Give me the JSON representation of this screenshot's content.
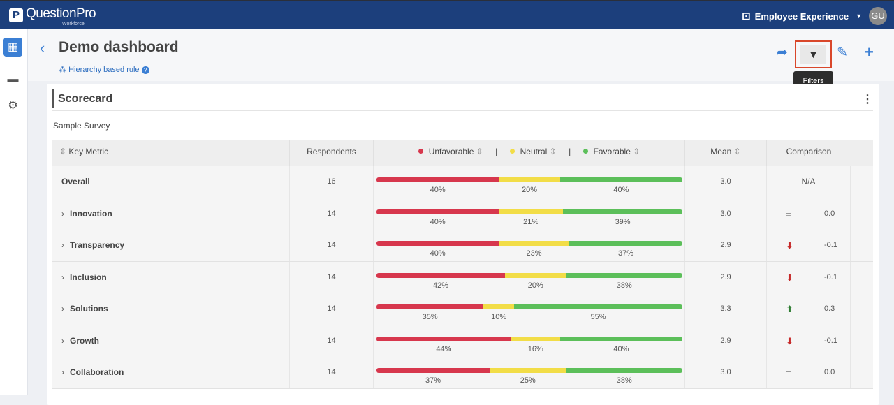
{
  "topbar": {
    "brand": "QuestionPro",
    "brand_sub": "Workforce",
    "product": "Employee Experience",
    "avatar": "GU"
  },
  "page": {
    "title": "Demo dashboard",
    "rule": "Hierarchy based rule",
    "tooltip": "Filters"
  },
  "card": {
    "title": "Scorecard",
    "survey": "Sample Survey"
  },
  "table": {
    "headers": {
      "metric": "Key Metric",
      "respondents": "Respondents",
      "unfavorable": "Unfavorable",
      "neutral": "Neutral",
      "favorable": "Favorable",
      "mean": "Mean",
      "comparison": "Comparison"
    },
    "colors": {
      "unfavorable": "#d7374d",
      "neutral": "#f2dd47",
      "favorable": "#5cbf5a"
    },
    "rows": [
      {
        "name": "Overall",
        "respondents": "16",
        "u": 40,
        "n": 20,
        "f": 40,
        "mean": "3.0",
        "trend": "none",
        "comparison": "N/A",
        "expandable": false
      },
      {
        "name": "Innovation",
        "respondents": "14",
        "u": 40,
        "n": 21,
        "f": 39,
        "mean": "3.0",
        "trend": "equal",
        "comparison": "0.0",
        "expandable": true
      },
      {
        "name": "Transparency",
        "respondents": "14",
        "u": 40,
        "n": 23,
        "f": 37,
        "mean": "2.9",
        "trend": "down",
        "comparison": "-0.1",
        "expandable": true
      },
      {
        "name": "Inclusion",
        "respondents": "14",
        "u": 42,
        "n": 20,
        "f": 38,
        "mean": "2.9",
        "trend": "down",
        "comparison": "-0.1",
        "expandable": true
      },
      {
        "name": "Solutions",
        "respondents": "14",
        "u": 35,
        "n": 10,
        "f": 55,
        "mean": "3.3",
        "trend": "up",
        "comparison": "0.3",
        "expandable": true
      },
      {
        "name": "Growth",
        "respondents": "14",
        "u": 44,
        "n": 16,
        "f": 40,
        "mean": "2.9",
        "trend": "down",
        "comparison": "-0.1",
        "expandable": true
      },
      {
        "name": "Collaboration",
        "respondents": "14",
        "u": 37,
        "n": 25,
        "f": 38,
        "mean": "3.0",
        "trend": "equal",
        "comparison": "0.0",
        "expandable": true
      }
    ]
  }
}
